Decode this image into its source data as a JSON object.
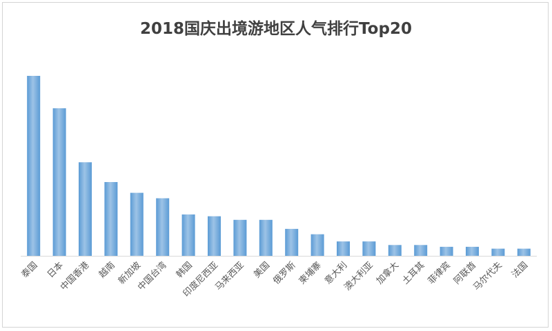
{
  "chart_data": {
    "type": "bar",
    "title": "2018国庆出境游地区人气排行Top20",
    "xlabel": "",
    "ylabel": "",
    "ylim": [
      0,
      100
    ],
    "grid": false,
    "legend": "none",
    "bar_color": "#5b9bd5",
    "bar_color_light": "#9dc3e6",
    "categories": [
      "泰国",
      "日本",
      "中国香港",
      "越南",
      "新加坡",
      "中国台湾",
      "韩国",
      "印度尼西亚",
      "马来西亚",
      "美国",
      "俄罗斯",
      "柬埔寨",
      "意大利",
      "澳大利亚",
      "加拿大",
      "土耳其",
      "菲律宾",
      "阿联酋",
      "马尔代夫",
      "法国"
    ],
    "values": [
      100,
      82,
      52,
      41,
      35,
      32,
      23,
      22,
      20,
      20,
      15,
      12,
      8,
      8,
      6,
      6,
      5,
      5,
      4,
      4
    ]
  }
}
